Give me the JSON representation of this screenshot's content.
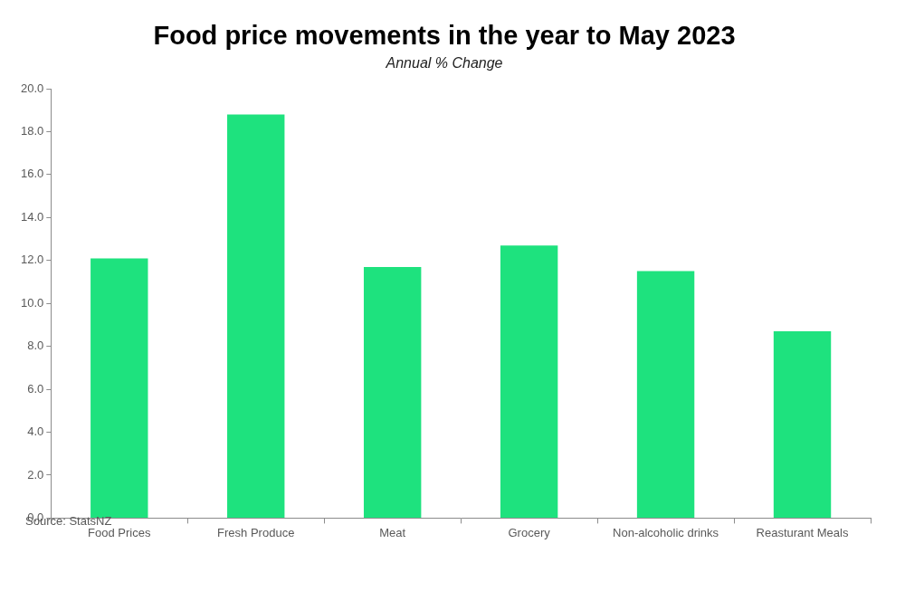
{
  "chart_data": {
    "type": "bar",
    "title": "Food price movements in the year to May 2023",
    "subtitle": "Annual % Change",
    "annotations": [
      "Source: StatsNZ"
    ],
    "categories": [
      "Food Prices",
      "Fresh Produce",
      "Meat",
      "Grocery",
      "Non-alcoholic drinks",
      "Reasturant Meals"
    ],
    "values": [
      12.1,
      18.8,
      11.7,
      12.7,
      11.5,
      8.7
    ],
    "color": "#1ee27e",
    "ylim": [
      0,
      20
    ],
    "yticks": [
      {
        "value": 0,
        "label": "0.0"
      },
      {
        "value": 2,
        "label": "2.0"
      },
      {
        "value": 4,
        "label": "4.0"
      },
      {
        "value": 6,
        "label": "6.0"
      },
      {
        "value": 8,
        "label": "8.0"
      },
      {
        "value": 10,
        "label": "10.0"
      },
      {
        "value": 12,
        "label": "12.0"
      },
      {
        "value": 14,
        "label": "14.0"
      },
      {
        "value": 16,
        "label": "16.0"
      },
      {
        "value": 18,
        "label": "18.0"
      },
      {
        "value": 20,
        "label": "20.0"
      }
    ],
    "grid": false
  }
}
